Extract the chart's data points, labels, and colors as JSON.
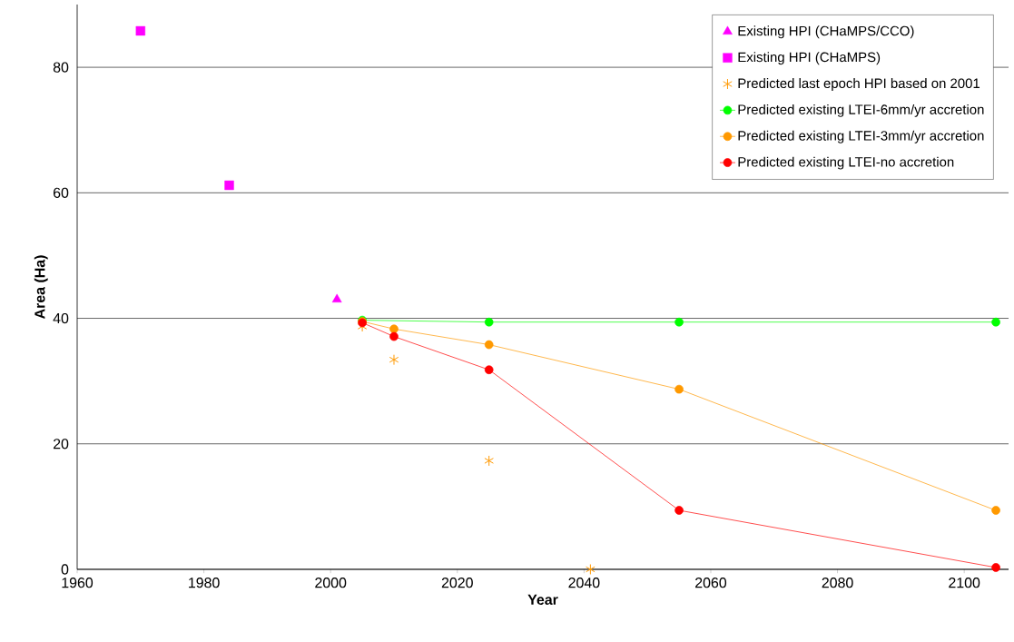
{
  "chart_data": {
    "type": "scatter",
    "xlabel": "Year",
    "ylabel": "Area (Ha)",
    "xlim": [
      1960,
      2107
    ],
    "xticks": [
      1960,
      1980,
      2000,
      2020,
      2040,
      2060,
      2080,
      2100
    ],
    "ylim": [
      0,
      90
    ],
    "yticks": [
      0,
      20,
      40,
      60,
      80
    ],
    "grid": "y",
    "legend": "top right",
    "series": [
      {
        "name": "Existing HPI (CHaMPS/CCO)",
        "marker": "triangle",
        "color": "#ff00ff",
        "x": [
          2001
        ],
        "values": [
          43.0
        ]
      },
      {
        "name": "Existing HPI (CHaMPS)",
        "marker": "square",
        "color": "#ff00ff",
        "x": [
          1970,
          1984
        ],
        "values": [
          85.8,
          61.2
        ]
      },
      {
        "name": "Predicted last epoch HPI based on 2001",
        "marker": "cross",
        "color": "#ff9900",
        "x": [
          2005,
          2010,
          2025,
          2041
        ],
        "values": [
          38.7,
          33.4,
          17.3,
          0
        ]
      },
      {
        "name": "Predicted existing LTEI-6mm/yr accretion",
        "type": "line",
        "marker": "circle",
        "color": "#00ff00",
        "x": [
          2005,
          2025,
          2055,
          2105
        ],
        "values": [
          39.7,
          39.4,
          39.4,
          39.4
        ]
      },
      {
        "name": "Predicted existing LTEI-3mm/yr accretion",
        "type": "line",
        "marker": "circle",
        "color": "#ff9900",
        "x": [
          2005,
          2010,
          2025,
          2055,
          2105
        ],
        "values": [
          39.5,
          38.3,
          35.8,
          28.7,
          9.4
        ]
      },
      {
        "name": "Predicted existing LTEI-no accretion",
        "type": "line",
        "marker": "circle",
        "color": "#ff0000",
        "x": [
          2005,
          2010,
          2025,
          2055,
          2105
        ],
        "values": [
          39.3,
          37.1,
          31.8,
          9.4,
          0.3
        ]
      }
    ]
  }
}
